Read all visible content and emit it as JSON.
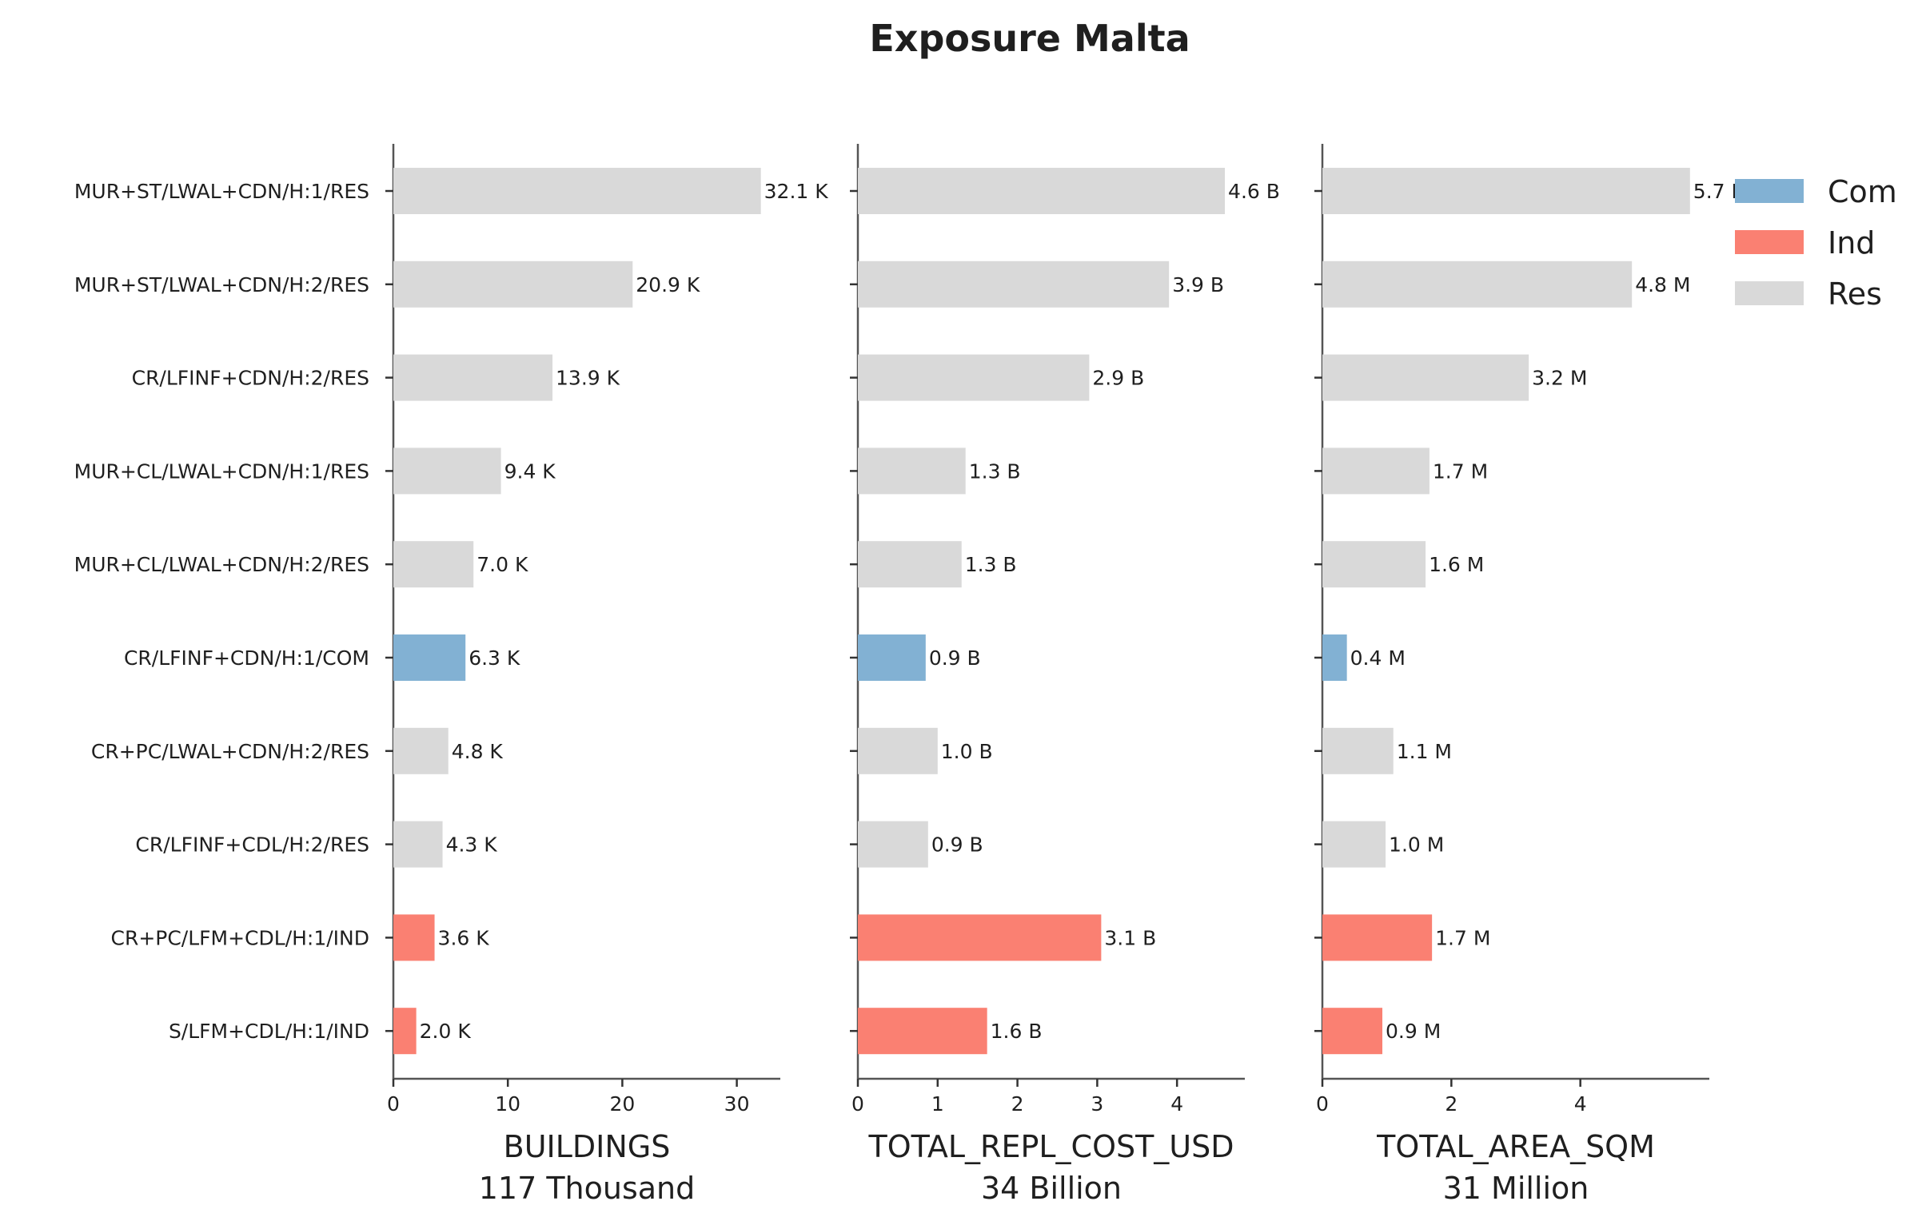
{
  "chart_data": {
    "type": "bar",
    "orientation": "horizontal",
    "title": "Exposure Malta",
    "categories": [
      "MUR+ST/LWAL+CDN/H:1/RES",
      "MUR+ST/LWAL+CDN/H:2/RES",
      "CR/LFINF+CDN/H:2/RES",
      "MUR+CL/LWAL+CDN/H:1/RES",
      "MUR+CL/LWAL+CDN/H:2/RES",
      "CR/LFINF+CDN/H:1/COM",
      "CR+PC/LWAL+CDN/H:2/RES",
      "CR/LFINF+CDL/H:2/RES",
      "CR+PC/LFM+CDL/H:1/IND",
      "S/LFM+CDL/H:1/IND"
    ],
    "occupancy": [
      "Res",
      "Res",
      "Res",
      "Res",
      "Res",
      "Com",
      "Res",
      "Res",
      "Ind",
      "Ind"
    ],
    "colors": {
      "Com": "#82b1d3",
      "Ind": "#fa8072",
      "Res": "#d9d9d9"
    },
    "legend": {
      "entries": [
        "Com",
        "Ind",
        "Res"
      ],
      "placement": "top-right"
    },
    "panels": [
      {
        "xlabel": "BUILDINGS",
        "total_label": "117 Thousand",
        "values": [
          32.1,
          20.9,
          13.9,
          9.4,
          7.0,
          6.3,
          4.8,
          4.3,
          3.6,
          2.0
        ],
        "value_labels": [
          "32.1 K",
          "20.9 K",
          "13.9 K",
          "9.4 K",
          "7.0 K",
          "6.3 K",
          "4.8 K",
          "4.3 K",
          "3.6 K",
          "2.0 K"
        ],
        "xlim": [
          0,
          33.8
        ],
        "xticks": [
          0,
          10,
          20,
          30
        ]
      },
      {
        "xlabel": "TOTAL_REPL_COST_USD",
        "total_label": "34 Billion",
        "values": [
          4.6,
          3.9,
          2.9,
          1.35,
          1.3,
          0.85,
          1.0,
          0.88,
          3.05,
          1.62
        ],
        "value_labels": [
          "4.6 B",
          "3.9 B",
          "2.9 B",
          "1.3 B",
          "1.3 B",
          "0.9 B",
          "1.0 B",
          "0.9 B",
          "3.1 B",
          "1.6 B"
        ],
        "xlim": [
          0,
          4.85
        ],
        "xticks": [
          0,
          1,
          2,
          3,
          4
        ]
      },
      {
        "xlabel": "TOTAL_AREA_SQM",
        "total_label": "31 Million",
        "values": [
          5.7,
          4.8,
          3.2,
          1.66,
          1.6,
          0.38,
          1.1,
          0.98,
          1.7,
          0.93
        ],
        "value_labels": [
          "5.7 M",
          "4.8 M",
          "3.2 M",
          "1.7 M",
          "1.6 M",
          "0.4 M",
          "1.1 M",
          "1.0 M",
          "1.7 M",
          "0.9 M"
        ],
        "xlim": [
          0,
          6.0
        ],
        "xticks": [
          0,
          2,
          4
        ]
      }
    ]
  }
}
